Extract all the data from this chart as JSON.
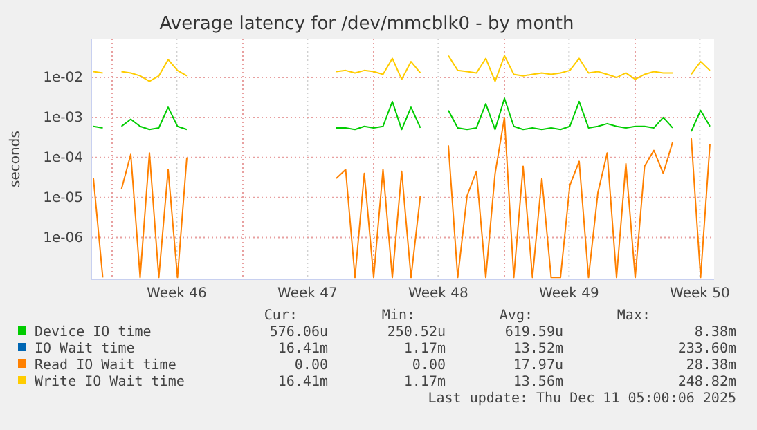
{
  "chart_data": {
    "type": "line",
    "title": "Average latency for /dev/mmcblk0 - by month",
    "ylabel": "seconds",
    "log": true,
    "grid": true,
    "legend": "bottom",
    "line_style": "solid",
    "marker": "none",
    "ylim": [
      9e-08,
      0.093
    ],
    "yticks": [
      {
        "value": 1e-06,
        "label": "1e-06"
      },
      {
        "value": 1e-05,
        "label": "1e-05"
      },
      {
        "value": 0.0001,
        "label": "1e-04"
      },
      {
        "value": 0.001,
        "label": "1e-03"
      },
      {
        "value": 0.01,
        "label": "1e-02"
      }
    ],
    "xlim": [
      "2025-11-08T21:20",
      "2025-12-12T05:20"
    ],
    "xticks": [
      {
        "value": "2025-11-10T00:00",
        "label": null
      },
      {
        "value": "2025-11-13T11:00",
        "label": "Week 46"
      },
      {
        "value": "2025-11-17T00:00",
        "label": null
      },
      {
        "value": "2025-11-20T11:00",
        "label": "Week 47"
      },
      {
        "value": "2025-11-24T00:00",
        "label": null
      },
      {
        "value": "2025-11-27T11:00",
        "label": "Week 48"
      },
      {
        "value": "2025-12-01T00:00",
        "label": null
      },
      {
        "value": "2025-12-04T11:00",
        "label": "Week 49"
      },
      {
        "value": "2025-12-08T00:00",
        "label": null
      },
      {
        "value": "2025-12-11T11:00",
        "label": "Week 50"
      }
    ],
    "x": [
      "2025-11-09T00:00",
      "2025-11-09T12:00",
      "2025-11-10T00:00",
      "2025-11-10T12:00",
      "2025-11-11T00:00",
      "2025-11-11T12:00",
      "2025-11-12T00:00",
      "2025-11-12T12:00",
      "2025-11-13T00:00",
      "2025-11-13T12:00",
      "2025-11-14T00:00",
      "2025-11-14T12:00",
      "2025-11-15T00:00",
      "2025-11-15T12:00",
      "2025-11-16T00:00",
      "2025-11-16T12:00",
      "2025-11-17T00:00",
      "2025-11-17T12:00",
      "2025-11-18T00:00",
      "2025-11-18T12:00",
      "2025-11-19T00:00",
      "2025-11-19T12:00",
      "2025-11-20T00:00",
      "2025-11-20T12:00",
      "2025-11-21T00:00",
      "2025-11-21T12:00",
      "2025-11-22T00:00",
      "2025-11-22T12:00",
      "2025-11-23T00:00",
      "2025-11-23T12:00",
      "2025-11-24T00:00",
      "2025-11-24T12:00",
      "2025-11-25T00:00",
      "2025-11-25T12:00",
      "2025-11-26T00:00",
      "2025-11-26T12:00",
      "2025-11-27T00:00",
      "2025-11-27T12:00",
      "2025-11-28T00:00",
      "2025-11-28T12:00",
      "2025-11-29T00:00",
      "2025-11-29T12:00",
      "2025-11-30T00:00",
      "2025-11-30T12:00",
      "2025-12-01T00:00",
      "2025-12-01T12:00",
      "2025-12-02T00:00",
      "2025-12-02T12:00",
      "2025-12-03T00:00",
      "2025-12-03T12:00",
      "2025-12-04T00:00",
      "2025-12-04T12:00",
      "2025-12-05T00:00",
      "2025-12-05T12:00",
      "2025-12-06T00:00",
      "2025-12-06T12:00",
      "2025-12-07T00:00",
      "2025-12-07T12:00",
      "2025-12-08T00:00",
      "2025-12-08T12:00",
      "2025-12-09T00:00",
      "2025-12-09T12:00",
      "2025-12-10T00:00",
      "2025-12-10T12:00",
      "2025-12-11T00:00",
      "2025-12-11T12:00",
      "2025-12-12T00:00"
    ],
    "series": [
      {
        "name": "Device IO time",
        "color": "#00cc00",
        "values": [
          0.0006,
          0.00055,
          null,
          0.0006,
          0.0009,
          0.0006,
          0.0005,
          0.00055,
          0.0018,
          0.0006,
          0.0005,
          null,
          null,
          null,
          null,
          null,
          null,
          null,
          null,
          null,
          null,
          null,
          null,
          null,
          null,
          null,
          0.00055,
          0.00055,
          0.0005,
          0.0006,
          0.00055,
          0.0006,
          0.0025,
          0.0005,
          0.0018,
          0.00055,
          null,
          null,
          0.0015,
          0.00055,
          0.0005,
          0.00055,
          0.0022,
          0.0005,
          0.003,
          0.0006,
          0.0005,
          0.00055,
          0.0005,
          0.00055,
          0.0005,
          0.0006,
          0.0025,
          0.00055,
          0.0006,
          0.0007,
          0.0006,
          0.00055,
          0.0006,
          0.0006,
          0.00055,
          0.001,
          0.00055,
          null,
          0.00045,
          0.0015,
          0.0006
        ]
      },
      {
        "name": "IO Wait time",
        "color": "#0066b3",
        "values": [
          null,
          null,
          null,
          null,
          null,
          null,
          null,
          null,
          null,
          null,
          null,
          null,
          null,
          null,
          null,
          null,
          null,
          null,
          null,
          null,
          null,
          null,
          null,
          null,
          null,
          null,
          null,
          null,
          null,
          null,
          null,
          null,
          null,
          null,
          null,
          null,
          null,
          null,
          null,
          null,
          null,
          null,
          null,
          null,
          null,
          null,
          null,
          null,
          null,
          null,
          null,
          null,
          null,
          null,
          null,
          null,
          null,
          null,
          null,
          null,
          null,
          null,
          null,
          null,
          null,
          null,
          null
        ]
      },
      {
        "name": "Read IO Wait time",
        "color": "#ff8000",
        "values": [
          3e-05,
          1e-07,
          null,
          1.6e-05,
          0.00012,
          1e-07,
          0.00013,
          1e-07,
          5e-05,
          1e-07,
          0.0001,
          null,
          null,
          null,
          null,
          null,
          null,
          null,
          null,
          null,
          null,
          null,
          null,
          null,
          null,
          null,
          3e-05,
          5e-05,
          1e-07,
          4e-05,
          1e-07,
          5e-05,
          1e-07,
          4.5e-05,
          1e-07,
          1.1e-05,
          null,
          null,
          0.0002,
          1e-07,
          1.1e-05,
          4.5e-05,
          1e-07,
          4e-05,
          0.001,
          1e-07,
          6e-05,
          1e-07,
          3e-05,
          1e-07,
          1e-07,
          2e-05,
          8e-05,
          1e-07,
          1.3e-05,
          0.00013,
          1e-07,
          7e-05,
          1e-07,
          6e-05,
          0.00015,
          4e-05,
          0.00024,
          null,
          0.0003,
          1e-07,
          0.00022
        ]
      },
      {
        "name": "Write IO Wait time",
        "color": "#ffcc00",
        "values": [
          0.014,
          0.013,
          null,
          0.014,
          0.013,
          0.011,
          0.008,
          0.011,
          0.028,
          0.015,
          0.011,
          null,
          null,
          null,
          null,
          null,
          null,
          null,
          null,
          null,
          null,
          null,
          null,
          null,
          null,
          null,
          0.014,
          0.015,
          0.013,
          0.015,
          0.014,
          0.012,
          0.03,
          0.009,
          0.025,
          0.013,
          null,
          null,
          0.035,
          0.015,
          0.014,
          0.013,
          0.03,
          0.008,
          0.035,
          0.012,
          0.011,
          0.012,
          0.013,
          0.012,
          0.013,
          0.015,
          0.03,
          0.013,
          0.014,
          0.012,
          0.01,
          0.013,
          0.009,
          0.012,
          0.014,
          0.013,
          0.013,
          null,
          0.012,
          0.025,
          0.015
        ]
      }
    ],
    "annotations": [
      "Cur:",
      "Min:",
      "Avg:",
      "Max:",
      "576.06u",
      "250.52u",
      "619.59u",
      "8.38m",
      "16.41m",
      "1.17m",
      "13.52m",
      "233.60m",
      "0.00",
      "0.00",
      "17.97u",
      "28.38m",
      "16.41m",
      "1.17m",
      "13.56m",
      "248.82m",
      "Last update: Thu Dec 11 05:00:06 2025"
    ]
  }
}
